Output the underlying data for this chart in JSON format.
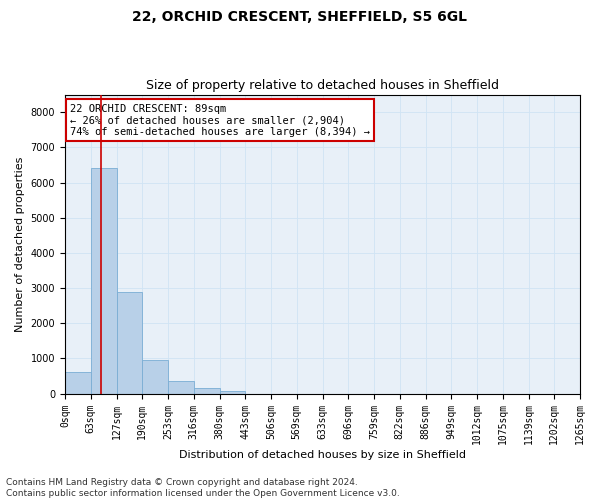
{
  "title_line1": "22, ORCHID CRESCENT, SHEFFIELD, S5 6GL",
  "title_line2": "Size of property relative to detached houses in Sheffield",
  "xlabel": "Distribution of detached houses by size in Sheffield",
  "ylabel": "Number of detached properties",
  "bar_values": [
    600,
    6400,
    2900,
    950,
    350,
    150,
    60,
    0,
    0,
    0,
    0,
    0,
    0,
    0,
    0,
    0,
    0,
    0,
    0,
    0
  ],
  "bin_edges": [
    0,
    63,
    127,
    190,
    253,
    316,
    380,
    443,
    506,
    569,
    633,
    696,
    759,
    822,
    886,
    949,
    1012,
    1075,
    1139,
    1202,
    1265
  ],
  "bar_color": "#b8d0e8",
  "bar_edge_color": "#7aadd4",
  "grid_color": "#d0e4f4",
  "background_color": "#e8f0f8",
  "property_size": 89,
  "red_line_color": "#cc0000",
  "annotation_text": "22 ORCHID CRESCENT: 89sqm\n← 26% of detached houses are smaller (2,904)\n74% of semi-detached houses are larger (8,394) →",
  "annotation_box_color": "#ffffff",
  "annotation_box_edge_color": "#cc0000",
  "ylim": [
    0,
    8500
  ],
  "yticks": [
    0,
    1000,
    2000,
    3000,
    4000,
    5000,
    6000,
    7000,
    8000
  ],
  "footer_line1": "Contains HM Land Registry data © Crown copyright and database right 2024.",
  "footer_line2": "Contains public sector information licensed under the Open Government Licence v3.0.",
  "title_fontsize": 10,
  "subtitle_fontsize": 9,
  "axis_label_fontsize": 8,
  "tick_fontsize": 7,
  "annotation_fontsize": 7.5,
  "footer_fontsize": 6.5
}
